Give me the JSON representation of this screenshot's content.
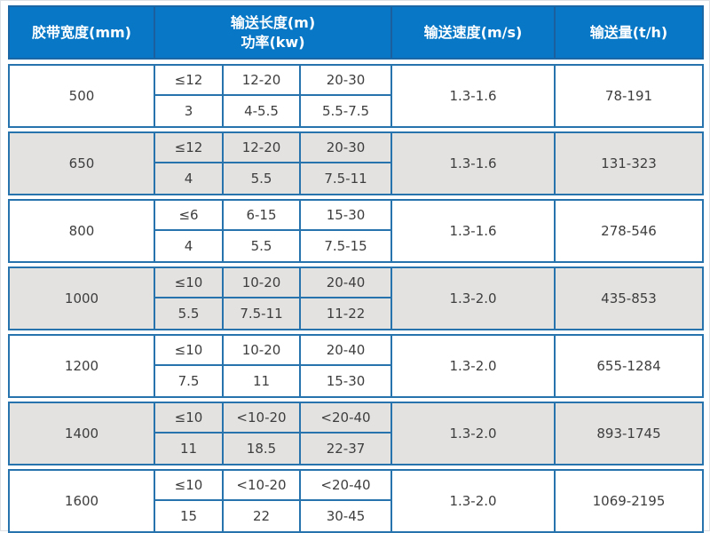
{
  "table": {
    "headers": {
      "belt_width": "胶带宽度(mm)",
      "length_line": "输送长度(m)",
      "power_line": "功率(kw)",
      "speed": "输送速度(m/s)",
      "capacity": "输送量(t/h)"
    },
    "rows": [
      {
        "width": "500",
        "lengths": [
          "≤12",
          "12-20",
          "20-30"
        ],
        "powers": [
          "3",
          "4-5.5",
          "5.5-7.5"
        ],
        "speed": "1.3-1.6",
        "capacity": "78-191"
      },
      {
        "width": "650",
        "lengths": [
          "≤12",
          "12-20",
          "20-30"
        ],
        "powers": [
          "4",
          "5.5",
          "7.5-11"
        ],
        "speed": "1.3-1.6",
        "capacity": "131-323"
      },
      {
        "width": "800",
        "lengths": [
          "≤6",
          "6-15",
          "15-30"
        ],
        "powers": [
          "4",
          "5.5",
          "7.5-15"
        ],
        "speed": "1.3-1.6",
        "capacity": "278-546"
      },
      {
        "width": "1000",
        "lengths": [
          "≤10",
          "10-20",
          "20-40"
        ],
        "powers": [
          "5.5",
          "7.5-11",
          "11-22"
        ],
        "speed": "1.3-2.0",
        "capacity": "435-853"
      },
      {
        "width": "1200",
        "lengths": [
          "≤10",
          "10-20",
          "20-40"
        ],
        "powers": [
          "7.5",
          "11",
          "15-30"
        ],
        "speed": "1.3-2.0",
        "capacity": "655-1284"
      },
      {
        "width": "1400",
        "lengths": [
          "≤10",
          "<10-20",
          "<20-40"
        ],
        "powers": [
          "11",
          "18.5",
          "22-37"
        ],
        "speed": "1.3-2.0",
        "capacity": "893-1745"
      },
      {
        "width": "1600",
        "lengths": [
          "≤10",
          "<10-20",
          "<20-40"
        ],
        "powers": [
          "15",
          "22",
          "30-45"
        ],
        "speed": "1.3-2.0",
        "capacity": "1069-2195"
      }
    ],
    "colors": {
      "header_bg": "#0878c6",
      "header_divider": "#1b5f9e",
      "outer_border": "#1b67a6",
      "border": "#2673ae",
      "row_alt_bg": "#e3e2e1",
      "text": "#3e3e3e"
    }
  }
}
